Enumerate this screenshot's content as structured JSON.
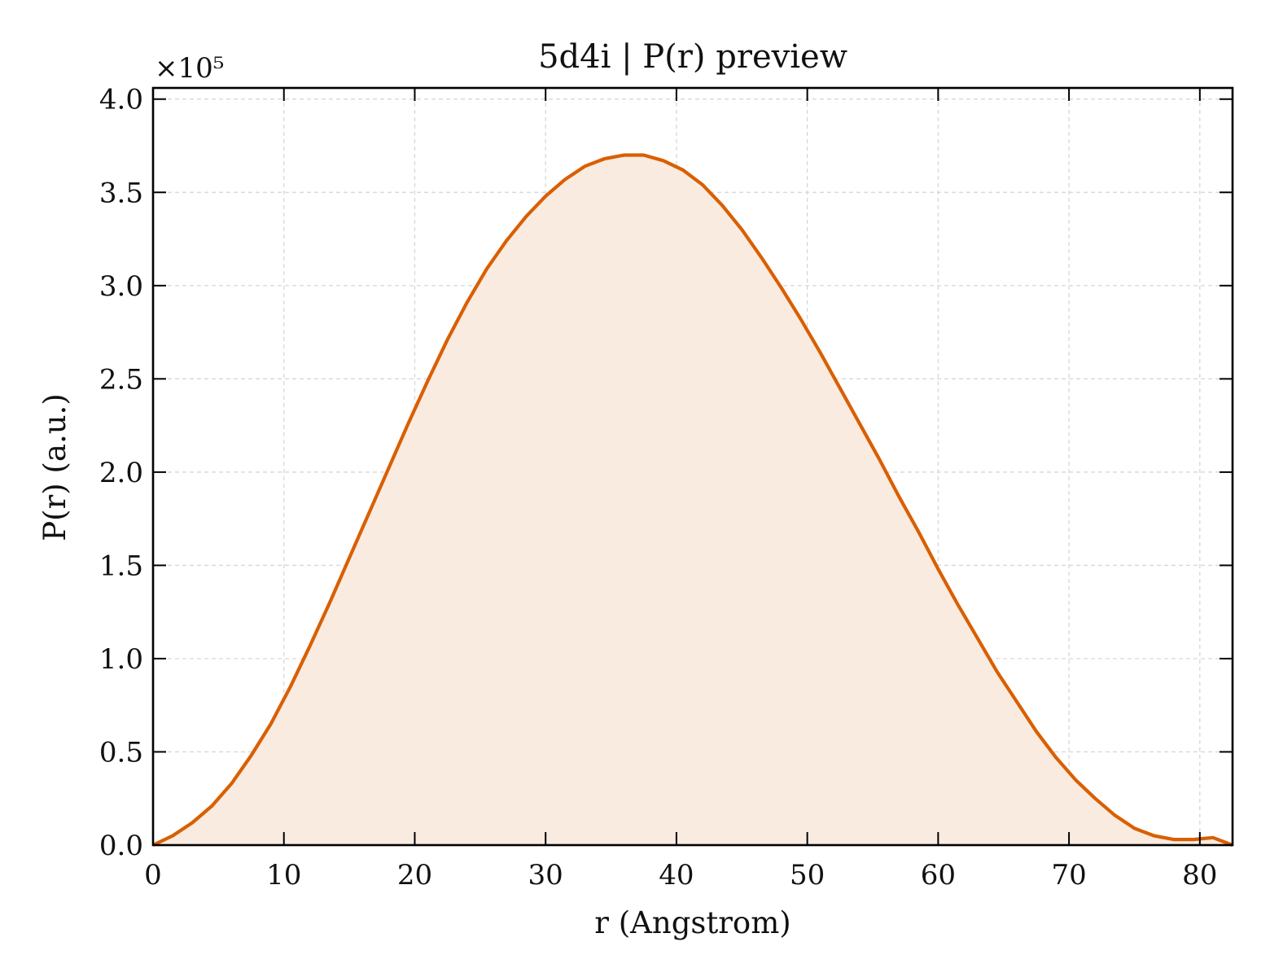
{
  "chart_data": {
    "type": "area",
    "title": "5d4i | P(r) preview",
    "xlabel": "r (Angstrom)",
    "ylabel": "P(r) (a.u.)",
    "y_multiplier_label": "×10⁵",
    "xlim": [
      0,
      82.5
    ],
    "ylim": [
      0,
      4.06
    ],
    "xticks": [
      "0",
      "10",
      "20",
      "30",
      "40",
      "50",
      "60",
      "70",
      "80"
    ],
    "xtick_values": [
      0,
      10,
      20,
      30,
      40,
      50,
      60,
      70,
      80
    ],
    "yticks": [
      "0.0",
      "0.5",
      "1.0",
      "1.5",
      "2.0",
      "2.5",
      "3.0",
      "3.5",
      "4.0"
    ],
    "ytick_values": [
      0.0,
      0.5,
      1.0,
      1.5,
      2.0,
      2.5,
      3.0,
      3.5,
      4.0
    ],
    "grid": true,
    "line_color": "#d95f02",
    "fill_color": "#f9ebe0",
    "series": [
      {
        "x": [
          0,
          1.5,
          3,
          4.5,
          6,
          7.5,
          9,
          10.5,
          12,
          13.5,
          15,
          16.5,
          18,
          19.5,
          21,
          22.5,
          24,
          25.5,
          27,
          28.5,
          30,
          31.5,
          33,
          34.5,
          36,
          37.5,
          39,
          40.5,
          42,
          43.5,
          45,
          46.5,
          48,
          49.5,
          51,
          52.5,
          54,
          55.5,
          57,
          58.5,
          60,
          61.5,
          63,
          64.5,
          66,
          67.5,
          69,
          70.5,
          72,
          73.5,
          75,
          76.5,
          78,
          79.5,
          81,
          82.5
        ],
        "y": [
          0.0,
          0.05,
          0.12,
          0.21,
          0.33,
          0.48,
          0.65,
          0.85,
          1.07,
          1.3,
          1.54,
          1.78,
          2.02,
          2.26,
          2.49,
          2.71,
          2.91,
          3.09,
          3.24,
          3.37,
          3.48,
          3.57,
          3.64,
          3.68,
          3.7,
          3.7,
          3.67,
          3.62,
          3.54,
          3.43,
          3.3,
          3.15,
          2.99,
          2.82,
          2.64,
          2.45,
          2.26,
          2.07,
          1.87,
          1.68,
          1.48,
          1.29,
          1.11,
          0.93,
          0.77,
          0.61,
          0.47,
          0.35,
          0.25,
          0.16,
          0.09,
          0.05,
          0.03,
          0.03,
          0.04,
          0.0
        ]
      }
    ]
  }
}
